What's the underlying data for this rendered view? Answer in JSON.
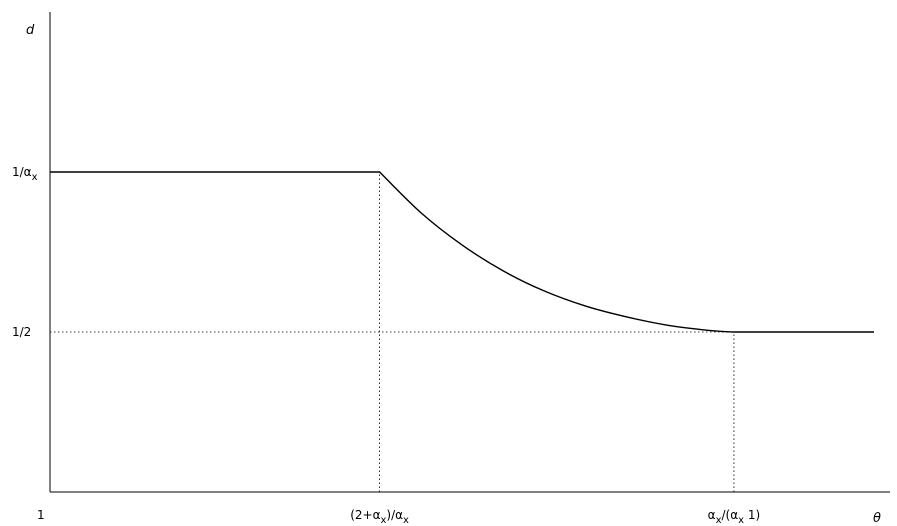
{
  "chart_data": {
    "type": "line",
    "title": "",
    "xlabel": "θ",
    "ylabel": "d",
    "x_ticks": [
      {
        "x": 0,
        "parts": [
          {
            "t": "1"
          }
        ]
      },
      {
        "x": 0.4,
        "parts": [
          {
            "t": "(2+α"
          },
          {
            "t": "x",
            "sub": true
          },
          {
            "t": ")/α"
          },
          {
            "t": "x",
            "sub": true
          }
        ]
      },
      {
        "x": 0.83,
        "parts": [
          {
            "t": "α"
          },
          {
            "t": "x",
            "sub": true
          },
          {
            "t": "/(α"
          },
          {
            "t": "x",
            "sub": true
          },
          {
            "t": " 1)"
          }
        ]
      }
    ],
    "y_ticks": [
      {
        "y": 0.5,
        "parts": [
          {
            "t": "1/2"
          }
        ]
      },
      {
        "y": 1.0,
        "parts": [
          {
            "t": "1/α"
          },
          {
            "t": "x",
            "sub": true
          }
        ]
      }
    ],
    "series": [
      {
        "x": [
          0,
          0.4,
          0.45,
          0.5,
          0.55,
          0.6,
          0.65,
          0.7,
          0.75,
          0.8,
          0.83,
          1.0
        ],
        "y": [
          1.0,
          1.0,
          0.873,
          0.772,
          0.691,
          0.628,
          0.581,
          0.547,
          0.521,
          0.505,
          0.5,
          0.5
        ]
      }
    ],
    "reference_lines": [
      {
        "orientation": "horizontal",
        "y": 0.5,
        "x_from": 0,
        "x_to": 0.83,
        "style": "dotted"
      },
      {
        "orientation": "vertical",
        "x": 0.4,
        "y_from": 0,
        "y_to": 1.0,
        "style": "dotted"
      },
      {
        "orientation": "vertical",
        "x": 0.83,
        "y_from": 0,
        "y_to": 0.5,
        "style": "dotted"
      }
    ],
    "xlim": [
      0,
      1.0
    ],
    "ylim": [
      0,
      1.5
    ],
    "grid": false
  }
}
